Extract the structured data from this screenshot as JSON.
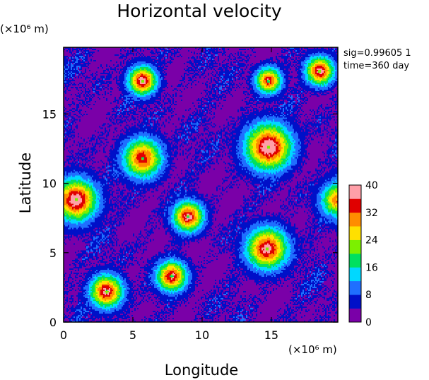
{
  "chart_data": {
    "type": "heatmap",
    "title": "Horizontal velocity",
    "xlabel": "Longitude",
    "ylabel": "Latitude",
    "x_scale_label": "(×10⁶ m)",
    "y_scale_label": "(×10⁶ m)",
    "xlim": [
      0,
      19.8
    ],
    "ylim": [
      0,
      19.8
    ],
    "xticks": [
      "0",
      "5",
      "10",
      "15"
    ],
    "yticks": [
      "0",
      "5",
      "10",
      "15"
    ],
    "annotations": [
      "sig=0.99605 1",
      "time=360 day"
    ],
    "colorbar": {
      "ticks": [
        "0",
        "8",
        "16",
        "24",
        "32",
        "40"
      ],
      "range": [
        0,
        40
      ],
      "colors": [
        "#7a00a8",
        "#0010c8",
        "#1f6fff",
        "#00d8ff",
        "#00e060",
        "#7cf000",
        "#ffe000",
        "#ff8c00",
        "#e00000",
        "#ff9fa8"
      ]
    },
    "vortices": [
      {
        "x": 5.7,
        "y": 17.4,
        "radius": 1.3,
        "peak": 34
      },
      {
        "x": 14.8,
        "y": 17.4,
        "radius": 1.2,
        "peak": 30
      },
      {
        "x": 18.5,
        "y": 18.1,
        "radius": 1.3,
        "peak": 33
      },
      {
        "x": 14.8,
        "y": 12.6,
        "radius": 2.1,
        "peak": 36
      },
      {
        "x": 5.7,
        "y": 11.8,
        "radius": 1.8,
        "peak": 30
      },
      {
        "x": 0.9,
        "y": 8.8,
        "radius": 1.9,
        "peak": 35
      },
      {
        "x": 9.0,
        "y": 7.6,
        "radius": 1.4,
        "peak": 33
      },
      {
        "x": 14.7,
        "y": 5.3,
        "radius": 1.9,
        "peak": 33
      },
      {
        "x": 7.8,
        "y": 3.3,
        "radius": 1.4,
        "peak": 32
      },
      {
        "x": 3.1,
        "y": 2.2,
        "radius": 1.5,
        "peak": 33
      },
      {
        "x": 19.8,
        "y": 8.8,
        "radius": 1.6,
        "peak": 26
      }
    ]
  }
}
